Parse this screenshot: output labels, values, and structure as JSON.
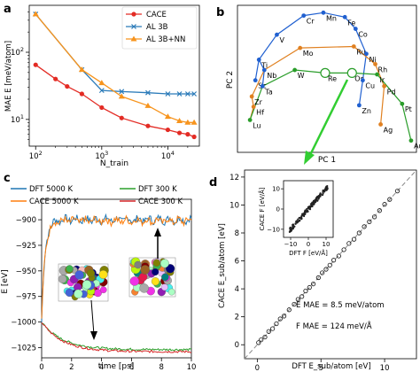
{
  "panel_labels": {
    "a": "a",
    "b": "b",
    "c": "c",
    "d": "d"
  },
  "colors": {
    "cace": "#e32b24",
    "al3b": "#2b7bb9",
    "al3bnn": "#f7941d",
    "dft5000": "#1f77b4",
    "cace5000": "#ff7f0e",
    "dft300": "#2ca02c",
    "cace300": "#d62728",
    "pca_blue": "#2060d0",
    "pca_orange": "#e08020",
    "pca_green": "#2a9d2a",
    "arrow_green": "#32cd32"
  },
  "chart_data": [
    {
      "panel": "a",
      "type": "line",
      "ylabel": "MAE E [meV/atom]",
      "xlabel": "N_train",
      "xscale": "log",
      "yscale": "log",
      "xlim": [
        80,
        30000
      ],
      "ylim": [
        4,
        500
      ],
      "xticks": [
        "10^2",
        "10^3",
        "10^4"
      ],
      "yticks": [
        "10^1",
        "10^2"
      ],
      "legend_position": "top-right",
      "series": [
        {
          "name": "CACE",
          "marker": "circle",
          "x": [
            100,
            200,
            300,
            500,
            1000,
            2000,
            5000,
            10000,
            15000,
            20000,
            25000
          ],
          "y": [
            65,
            40,
            31,
            24,
            15,
            10.5,
            8,
            7,
            6.3,
            6,
            5.5
          ]
        },
        {
          "name": "AL 3B",
          "marker": "x",
          "x": [
            100,
            500,
            1000,
            2000,
            5000,
            10000,
            15000,
            20000,
            25000
          ],
          "y": [
            370,
            55,
            27,
            26,
            25,
            24,
            24,
            24,
            24
          ]
        },
        {
          "name": "AL 3B+NN",
          "marker": "triangle",
          "x": [
            100,
            500,
            1000,
            2000,
            5000,
            10000,
            15000,
            20000,
            25000
          ],
          "y": [
            370,
            55,
            35,
            22,
            16,
            11,
            9.5,
            9,
            9
          ]
        }
      ]
    },
    {
      "panel": "b",
      "type": "scatter",
      "xlabel": "PC 1",
      "ylabel": "PC 2",
      "grid": false,
      "ticks": false,
      "points": [
        {
          "label": "Cr",
          "x": 0.37,
          "y": 0.93,
          "group": "blue"
        },
        {
          "label": "Mn",
          "x": 0.48,
          "y": 0.95,
          "group": "blue"
        },
        {
          "label": "Fe",
          "x": 0.6,
          "y": 0.92,
          "group": "blue"
        },
        {
          "label": "Co",
          "x": 0.66,
          "y": 0.84,
          "group": "blue"
        },
        {
          "label": "V",
          "x": 0.22,
          "y": 0.8,
          "group": "blue"
        },
        {
          "label": "Mo",
          "x": 0.35,
          "y": 0.71,
          "group": "orange"
        },
        {
          "label": "Ru",
          "x": 0.65,
          "y": 0.72,
          "group": "orange"
        },
        {
          "label": "Ni",
          "x": 0.72,
          "y": 0.67,
          "group": "blue"
        },
        {
          "label": "Ti",
          "x": 0.12,
          "y": 0.63,
          "group": "blue"
        },
        {
          "label": "Rh",
          "x": 0.77,
          "y": 0.6,
          "group": "orange"
        },
        {
          "label": "Nb",
          "x": 0.15,
          "y": 0.56,
          "group": "blue"
        },
        {
          "label": "W",
          "x": 0.32,
          "y": 0.56,
          "group": "green"
        },
        {
          "label": "Re",
          "x": 0.49,
          "y": 0.54,
          "group": "green"
        },
        {
          "label": "Os",
          "x": 0.64,
          "y": 0.54,
          "group": "green"
        },
        {
          "label": "Ir",
          "x": 0.78,
          "y": 0.53,
          "group": "green"
        },
        {
          "label": "Sc",
          "x": 0.1,
          "y": 0.49,
          "group": "blue"
        },
        {
          "label": "Ta",
          "x": 0.14,
          "y": 0.45,
          "group": "blue"
        },
        {
          "label": "Cu",
          "x": 0.7,
          "y": 0.49,
          "group": "blue"
        },
        {
          "label": "Pd",
          "x": 0.82,
          "y": 0.45,
          "group": "orange"
        },
        {
          "label": "Zr",
          "x": 0.08,
          "y": 0.38,
          "group": "orange"
        },
        {
          "label": "Zn",
          "x": 0.68,
          "y": 0.32,
          "group": "blue"
        },
        {
          "label": "Pt",
          "x": 0.92,
          "y": 0.33,
          "group": "green"
        },
        {
          "label": "Hf",
          "x": 0.09,
          "y": 0.31,
          "group": "orange"
        },
        {
          "label": "Lu",
          "x": 0.07,
          "y": 0.22,
          "group": "green"
        },
        {
          "label": "Ag",
          "x": 0.8,
          "y": 0.19,
          "group": "orange"
        },
        {
          "label": "Au",
          "x": 0.97,
          "y": 0.08,
          "group": "green"
        }
      ],
      "highlighted": [
        "Re",
        "Os"
      ]
    },
    {
      "panel": "c",
      "type": "line",
      "xlabel": "time [ps]",
      "ylabel": "E [eV]",
      "xlim": [
        0,
        10
      ],
      "ylim": [
        -1035,
        -880
      ],
      "xticks": [
        0,
        2,
        4,
        6,
        8,
        10
      ],
      "yticks": [
        -900,
        -925,
        -950,
        -975,
        -1000,
        -1025
      ],
      "legend_position": "top",
      "series": [
        {
          "name": "DFT 5000 K",
          "level": -900,
          "start": -1000
        },
        {
          "name": "CACE 5000 K",
          "level": -901,
          "start": -1000
        },
        {
          "name": "DFT 300 K",
          "level": -1027,
          "start": -1000
        },
        {
          "name": "CACE 300 K",
          "level": -1029,
          "start": -1000
        }
      ]
    },
    {
      "panel": "d",
      "type": "scatter",
      "xlabel": "DFT E_sub/atom [eV]",
      "ylabel": "CACE E_sub/atom [eV]",
      "xlim": [
        -1,
        12.5
      ],
      "ylim": [
        -1,
        12.5
      ],
      "xticks": [
        0,
        5,
        10
      ],
      "yticks": [
        0,
        2,
        4,
        6,
        8,
        10,
        12
      ],
      "annotations": [
        "E MAE = 8.5 meV/atom",
        "F MAE = 124 meV/Å"
      ],
      "points": [
        [
          0.1,
          0.15
        ],
        [
          0.3,
          0.35
        ],
        [
          0.6,
          0.55
        ],
        [
          0.9,
          0.95
        ],
        [
          1.2,
          1.15
        ],
        [
          1.5,
          1.5
        ],
        [
          1.8,
          1.85
        ],
        [
          2.1,
          2.05
        ],
        [
          2.5,
          2.5
        ],
        [
          2.9,
          2.9
        ],
        [
          3.2,
          3.25
        ],
        [
          3.5,
          3.45
        ],
        [
          3.8,
          3.85
        ],
        [
          4.1,
          4.1
        ],
        [
          4.4,
          4.35
        ],
        [
          4.8,
          4.8
        ],
        [
          5.1,
          5.15
        ],
        [
          5.4,
          5.4
        ],
        [
          5.7,
          5.7
        ],
        [
          6.0,
          6.05
        ],
        [
          6.4,
          6.35
        ],
        [
          6.8,
          6.8
        ],
        [
          7.2,
          7.25
        ],
        [
          7.6,
          7.55
        ],
        [
          8.0,
          8.0
        ],
        [
          8.4,
          8.45
        ],
        [
          8.8,
          8.8
        ],
        [
          9.2,
          9.15
        ],
        [
          9.6,
          9.6
        ],
        [
          10.0,
          10.05
        ],
        [
          10.4,
          10.4
        ],
        [
          11.0,
          11.0
        ]
      ],
      "inset": {
        "xlabel": "DFT F [eV/Å]",
        "ylabel": "CACE F [eV/Å]",
        "xticks": [
          -10,
          0,
          10
        ],
        "yticks": [
          -10,
          0,
          10
        ]
      }
    }
  ]
}
